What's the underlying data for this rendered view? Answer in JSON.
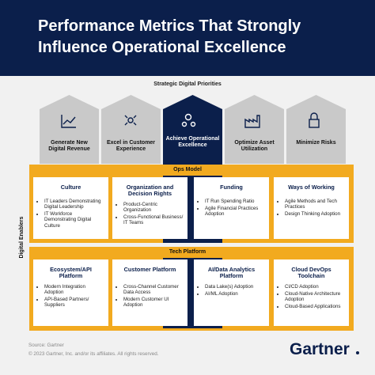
{
  "header": {
    "title_lines": [
      "Performance Metrics That Strongly",
      "Influence Operational Excellence"
    ]
  },
  "priorities": {
    "label": "Strategic Digital Priorities",
    "items": [
      "Generate New Digital Revenue",
      "Excel in Customer Experience",
      "Achieve Operational Excellence",
      "Optimize Asset Utilization",
      "Minimize Risks"
    ]
  },
  "enablers_label": "Digital Enablers",
  "sections": [
    {
      "title": "Ops Model",
      "boxes": [
        {
          "title": "Culture",
          "bullets": [
            "IT Leaders Demonstrating Digital Leadership",
            "IT Workforce Demonstrating Digital Culture"
          ]
        },
        {
          "title": "Organization and Decision Rights",
          "bullets": [
            "Product-Centric Organization",
            "Cross-Functional Business/ IT Teams"
          ]
        },
        {
          "title": "Funding",
          "bullets": [
            "IT Run Spending Ratio",
            "Agile Financial Practices Adoption"
          ]
        },
        {
          "title": "Ways of Working",
          "bullets": [
            "Agile Methods and Tech Practices",
            "Design Thinking Adoption"
          ]
        }
      ]
    },
    {
      "title": "Tech Platform",
      "boxes": [
        {
          "title": "Ecosystem/API Platform",
          "bullets": [
            "Modern Integration Adoption",
            "API-Based Partners/ Suppliers"
          ]
        },
        {
          "title": "Customer Platform",
          "bullets": [
            "Cross-Channel Customer Data Access",
            "Modern Customer UI Adoption"
          ]
        },
        {
          "title": "AI/Data Analytics Platform",
          "bullets": [
            "Data Lake(s) Adoption",
            "AI/ML Adoption"
          ]
        },
        {
          "title": "Cloud DevOps Toolchain",
          "bullets": [
            "CI/CD Adoption",
            "Cloud-Native Architecture Adoption",
            "Cloud-Based Applications"
          ]
        }
      ]
    }
  ],
  "footer": {
    "source": "Source: Gartner",
    "copyright": "© 2023 Gartner, Inc. and/or its affiliates. All rights reserved.",
    "logo": "Gartner"
  }
}
